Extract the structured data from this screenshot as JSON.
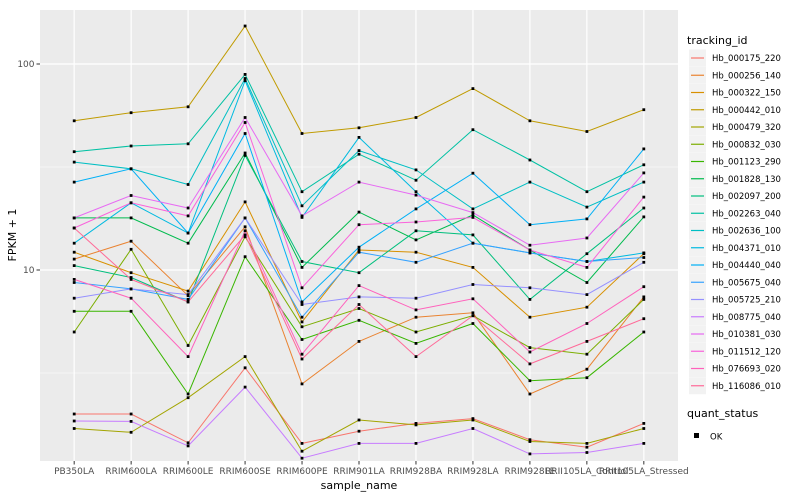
{
  "figure": {
    "background_color": "#ffffff",
    "panel_color": "#ebebeb",
    "gridline_color": "#ffffff",
    "point_color": "#000000",
    "tick_label_color": "#4d4d4d"
  },
  "axes": {
    "y_title": "FPKM + 1",
    "x_title": "sample_name",
    "y_ticks": [
      {
        "value": 100,
        "label": "100"
      },
      {
        "value": 10,
        "label": "10"
      }
    ]
  },
  "legend": {
    "tracking_title": "tracking_id",
    "quant_title": "quant_status",
    "quant_items": [
      {
        "label": "OK",
        "marker": "black-square"
      }
    ]
  },
  "chart_data": {
    "type": "line",
    "title": "",
    "xlabel": "sample_name",
    "ylabel": "FPKM + 1",
    "y_scale": "log10",
    "ylim": [
      1.15,
      175
    ],
    "grid": true,
    "legend_position": "right",
    "point_marker": "black-square",
    "major_gridlines": [
      10,
      100
    ],
    "minor_gridlines": [
      3.1623,
      31.623
    ],
    "categories": [
      "PB350LA",
      "RRIM600LA",
      "RRIM600LE",
      "RRIM600SE",
      "RRIM600PE",
      "RRIM901LA",
      "RRIM928BA",
      "RRIM928LA",
      "RRIM928LE",
      "RRII105LA_Control",
      "RRII105LA_Stressed"
    ],
    "series": [
      {
        "name": "Hb_000175_220",
        "color": "#F8766D",
        "values": [
          2.0,
          2.0,
          1.45,
          3.35,
          1.44,
          1.65,
          1.8,
          1.9,
          1.5,
          1.38,
          1.8
        ]
      },
      {
        "name": "Hb_000256_140",
        "color": "#EA8331",
        "values": [
          11.3,
          13.8,
          7.5,
          16.2,
          2.8,
          4.5,
          5.9,
          6.2,
          2.5,
          3.3,
          7.4
        ]
      },
      {
        "name": "Hb_000322_150",
        "color": "#D89000",
        "values": [
          12.2,
          9.7,
          7.9,
          21.4,
          5.6,
          12.5,
          12.2,
          10.3,
          5.9,
          6.6,
          12.0
        ]
      },
      {
        "name": "Hb_000442_010",
        "color": "#C09B00",
        "values": [
          53,
          58,
          62,
          153,
          46,
          49,
          55,
          76,
          53,
          47,
          60
        ]
      },
      {
        "name": "Hb_000479_320",
        "color": "#A3A500",
        "values": [
          1.7,
          1.63,
          2.4,
          3.8,
          1.32,
          1.87,
          1.77,
          1.87,
          1.47,
          1.44,
          1.7
        ]
      },
      {
        "name": "Hb_000832_030",
        "color": "#7CAE00",
        "values": [
          5.0,
          12.6,
          4.3,
          14.5,
          5.3,
          6.5,
          5.0,
          6.0,
          4.2,
          3.9,
          7.2
        ]
      },
      {
        "name": "Hb_001123_290",
        "color": "#39B600",
        "values": [
          6.3,
          6.3,
          2.5,
          11.6,
          4.6,
          5.7,
          4.4,
          5.5,
          2.9,
          3.0,
          5.0
        ]
      },
      {
        "name": "Hb_001828_130",
        "color": "#00BB4E",
        "values": [
          17.9,
          17.9,
          13.5,
          37,
          10.3,
          19.1,
          14.0,
          18.5,
          12.5,
          8.7,
          18.1
        ]
      },
      {
        "name": "Hb_002097_200",
        "color": "#00BF7D",
        "values": [
          10.5,
          9.2,
          7.0,
          36,
          11.0,
          9.7,
          15.5,
          14.8,
          7.2,
          12.0,
          20.0
        ]
      },
      {
        "name": "Hb_002263_040",
        "color": "#00C1A3",
        "values": [
          37.5,
          40,
          41,
          89,
          24,
          36.5,
          27.3,
          48,
          34.2,
          24,
          32.4
        ]
      },
      {
        "name": "Hb_002636_100",
        "color": "#00BFC4",
        "values": [
          33.4,
          31,
          26,
          85,
          20.5,
          38,
          30.6,
          19.8,
          26.7,
          20.2,
          26.7
        ]
      },
      {
        "name": "Hb_004371_010",
        "color": "#00BAE0",
        "values": [
          13.5,
          21.2,
          15.1,
          83,
          18,
          44,
          24,
          13.5,
          12.1,
          11.0,
          12.1
        ]
      },
      {
        "name": "Hb_004440_040",
        "color": "#00B0F6",
        "values": [
          26.7,
          31,
          15.1,
          46,
          7.0,
          12.9,
          19.8,
          29.5,
          16.6,
          17.7,
          38.7
        ]
      },
      {
        "name": "Hb_005675_040",
        "color": "#35A2FF",
        "values": [
          8.7,
          8.1,
          7.2,
          17.9,
          5.9,
          12.2,
          10.9,
          13.5,
          12.1,
          11.0,
          11.5
        ]
      },
      {
        "name": "Hb_005725_210",
        "color": "#9590FF",
        "values": [
          7.3,
          8.1,
          7.6,
          17.9,
          6.8,
          7.4,
          7.3,
          8.5,
          8.2,
          7.6,
          10.9
        ]
      },
      {
        "name": "Hb_008775_040",
        "color": "#C77CFF",
        "values": [
          1.85,
          1.84,
          1.4,
          2.7,
          1.22,
          1.44,
          1.44,
          1.7,
          1.28,
          1.3,
          1.44
        ]
      },
      {
        "name": "Hb_010381_030",
        "color": "#E76BF3",
        "values": [
          17.9,
          23,
          20,
          55,
          18.3,
          26.7,
          23.1,
          19,
          13.2,
          14.3,
          29.6
        ]
      },
      {
        "name": "Hb_011512_120",
        "color": "#FA62DB",
        "values": [
          16,
          21.2,
          18.3,
          52,
          8.2,
          16.6,
          17.1,
          18,
          12.5,
          10.3,
          22.6
        ]
      },
      {
        "name": "Hb_076693_020",
        "color": "#FF62BC",
        "values": [
          9.0,
          7.3,
          3.8,
          15.5,
          3.9,
          8.4,
          6.4,
          7.25,
          4.0,
          5.5,
          8.3
        ]
      },
      {
        "name": "Hb_116086_010",
        "color": "#FF6A98",
        "values": [
          16,
          9.0,
          7.0,
          14.8,
          3.7,
          6.8,
          3.8,
          6.0,
          3.5,
          4.5,
          5.8
        ]
      }
    ]
  }
}
